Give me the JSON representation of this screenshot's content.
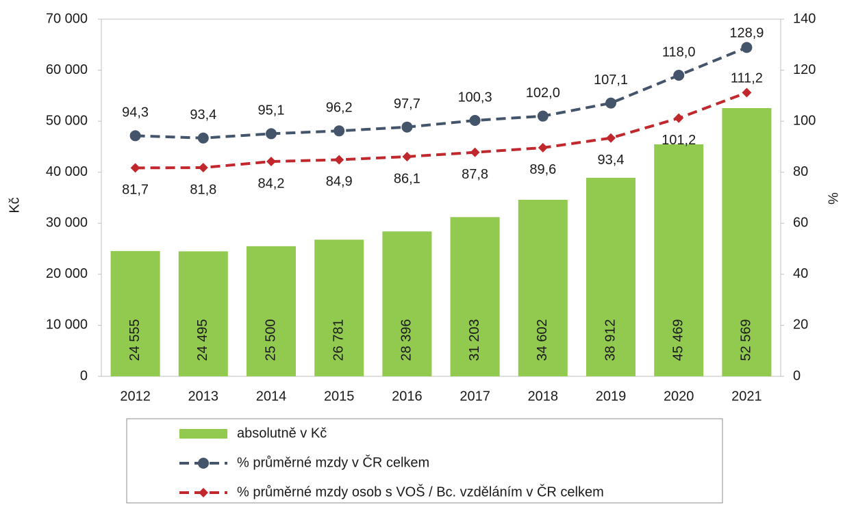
{
  "chart_data": {
    "type": "bar",
    "categories": [
      "2012",
      "2013",
      "2014",
      "2015",
      "2016",
      "2017",
      "2018",
      "2019",
      "2020",
      "2021"
    ],
    "series": [
      {
        "name": "absolutně v Kč",
        "color": "#92c94f",
        "type": "bar",
        "values": [
          24555,
          24495,
          25500,
          26781,
          28396,
          31203,
          34602,
          38912,
          45469,
          52569
        ],
        "value_labels": [
          "24 555",
          "24 495",
          "25 500",
          "26 781",
          "28 396",
          "31 203",
          "34 602",
          "38 912",
          "45 469",
          "52 569"
        ]
      },
      {
        "name": "% průměrné mzdy v ČR celkem",
        "color": "#44546a",
        "type": "line",
        "axis": "y2",
        "marker": "circle",
        "values": [
          94.3,
          93.4,
          95.1,
          96.2,
          97.7,
          100.3,
          102.0,
          107.1,
          118.0,
          128.9
        ],
        "value_labels": [
          "94,3",
          "93,4",
          "95,1",
          "96,2",
          "97,7",
          "100,3",
          "102,0",
          "107,1",
          "118,0",
          "128,9"
        ]
      },
      {
        "name": "% průměrné mzdy osob s VOŠ / Bc. vzděláním v ČR celkem",
        "color": "#c0282d",
        "type": "line",
        "axis": "y2",
        "marker": "diamond",
        "values": [
          81.7,
          81.8,
          84.2,
          84.9,
          86.1,
          87.8,
          89.6,
          93.4,
          101.2,
          111.2
        ],
        "value_labels": [
          "81,7",
          "81,8",
          "84,2",
          "84,9",
          "86,1",
          "87,8",
          "89,6",
          "93,4",
          "101,2",
          "111,2"
        ]
      }
    ],
    "y_label": "Kč",
    "y2_label": "%",
    "ylim": [
      0,
      70000
    ],
    "yticks": [
      0,
      {
        "value": 10000,
        "label": "10 000"
      },
      {
        "value": 20000,
        "label": "20 000"
      },
      {
        "value": 30000,
        "label": "30 000"
      },
      {
        "value": 40000,
        "label": "40 000"
      },
      {
        "value": 50000,
        "label": "50 000"
      },
      {
        "value": 60000,
        "label": "60 000"
      },
      {
        "value": 70000,
        "label": "70 000"
      }
    ],
    "y2lim": [
      0,
      140
    ],
    "y2ticks": [
      0,
      20,
      40,
      60,
      80,
      100,
      120,
      140
    ],
    "grid": false,
    "legend": "bottom"
  }
}
